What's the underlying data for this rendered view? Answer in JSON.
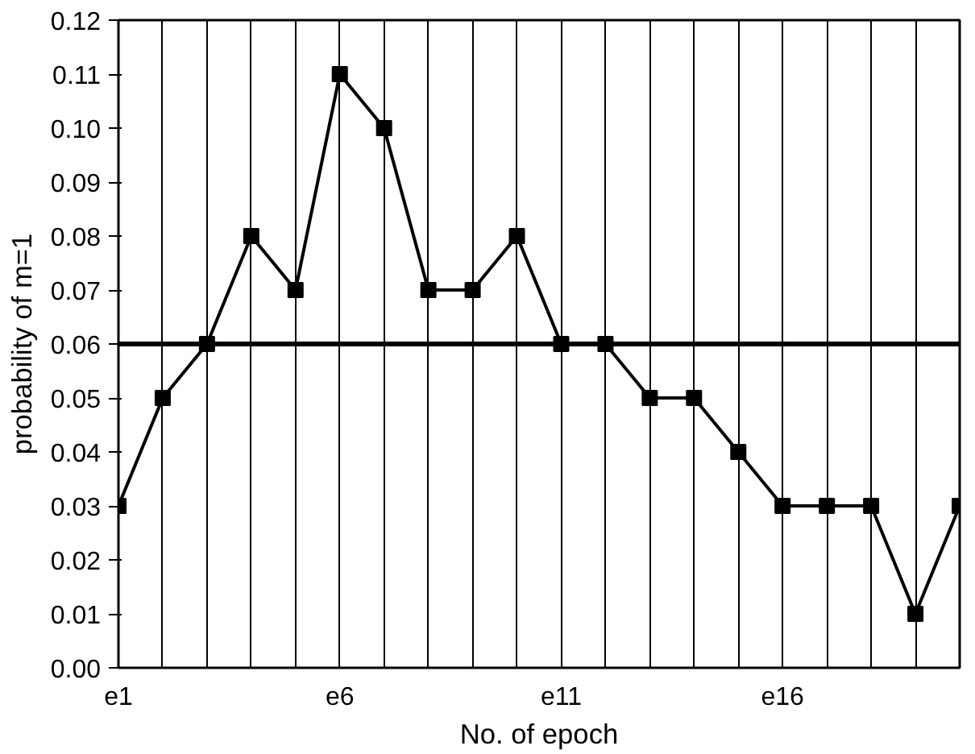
{
  "chart_data": {
    "type": "line",
    "xlabel": "No. of epoch",
    "ylabel": "probability of m=1",
    "categories": [
      "e1",
      null,
      null,
      null,
      null,
      "e6",
      null,
      null,
      null,
      null,
      "e11",
      null,
      null,
      null,
      null,
      "e16",
      null,
      null,
      null,
      null
    ],
    "series": [
      {
        "color": "#000000",
        "values": [
          0.03,
          0.05,
          0.06,
          0.08,
          0.07,
          0.11,
          0.1,
          0.07,
          0.07,
          0.08,
          0.06,
          0.06,
          0.05,
          0.05,
          0.04,
          0.03,
          0.03,
          0.03,
          0.01,
          0.03
        ]
      }
    ],
    "ylim": [
      0,
      0.12
    ],
    "yticks": [
      {
        "value": 0,
        "label": "0.00"
      },
      {
        "value": 0.01,
        "label": "0.01"
      },
      {
        "value": 0.02,
        "label": "0.02"
      },
      {
        "value": 0.03,
        "label": "0.03"
      },
      {
        "value": 0.04,
        "label": "0.04"
      },
      {
        "value": 0.05,
        "label": "0.05"
      },
      {
        "value": 0.06,
        "label": "0.06"
      },
      {
        "value": 0.07,
        "label": "0.07"
      },
      {
        "value": 0.08,
        "label": "0.08"
      },
      {
        "value": 0.09,
        "label": "0.09"
      },
      {
        "value": 0.1,
        "label": "0.10"
      },
      {
        "value": 0.11,
        "label": "0.11"
      },
      {
        "value": 0.12,
        "label": "0.12"
      }
    ],
    "ref_lines": [
      {
        "axis": "y",
        "value": 0.06,
        "color": "#000000"
      }
    ],
    "grid": "x",
    "marker": "square",
    "line_style": "solid"
  }
}
